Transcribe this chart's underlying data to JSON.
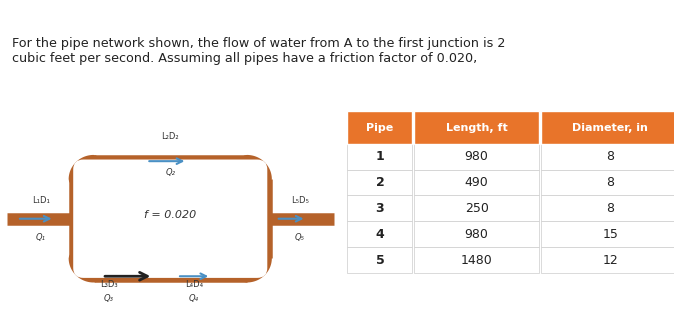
{
  "title_text": "For the pipe network shown, the flow of water from A to the first junction is 2\ncubic feet per second. Assuming all pipes have a friction factor of 0.020,",
  "title_bg": "#cccfb4",
  "body_bg": "#ffffff",
  "pipe_color": "#b5622a",
  "arrow_color": "#4a90c4",
  "friction_label": "f = 0.020",
  "pipe_labels": {
    "top": [
      "L₂D₂",
      "Q₂"
    ],
    "right": [
      "L₅D₅",
      "Q₅"
    ],
    "bottom_left": [
      "L₃D₃",
      "Q₃"
    ],
    "bottom_right": [
      "L₄D₄",
      "Q₄"
    ],
    "left": [
      "L₁D₁",
      "Q₁"
    ]
  },
  "table_header_bg": "#e8742a",
  "table_header_color": "#ffffff",
  "table_row_bg": "#ffffff",
  "table_border": "#cccccc",
  "table_data": {
    "headers": [
      "Pipe",
      "Length, ft",
      "Diameter, in"
    ],
    "rows": [
      [
        1,
        980,
        8
      ],
      [
        2,
        490,
        8
      ],
      [
        3,
        250,
        8
      ],
      [
        4,
        980,
        15
      ],
      [
        5,
        1480,
        12
      ]
    ]
  }
}
